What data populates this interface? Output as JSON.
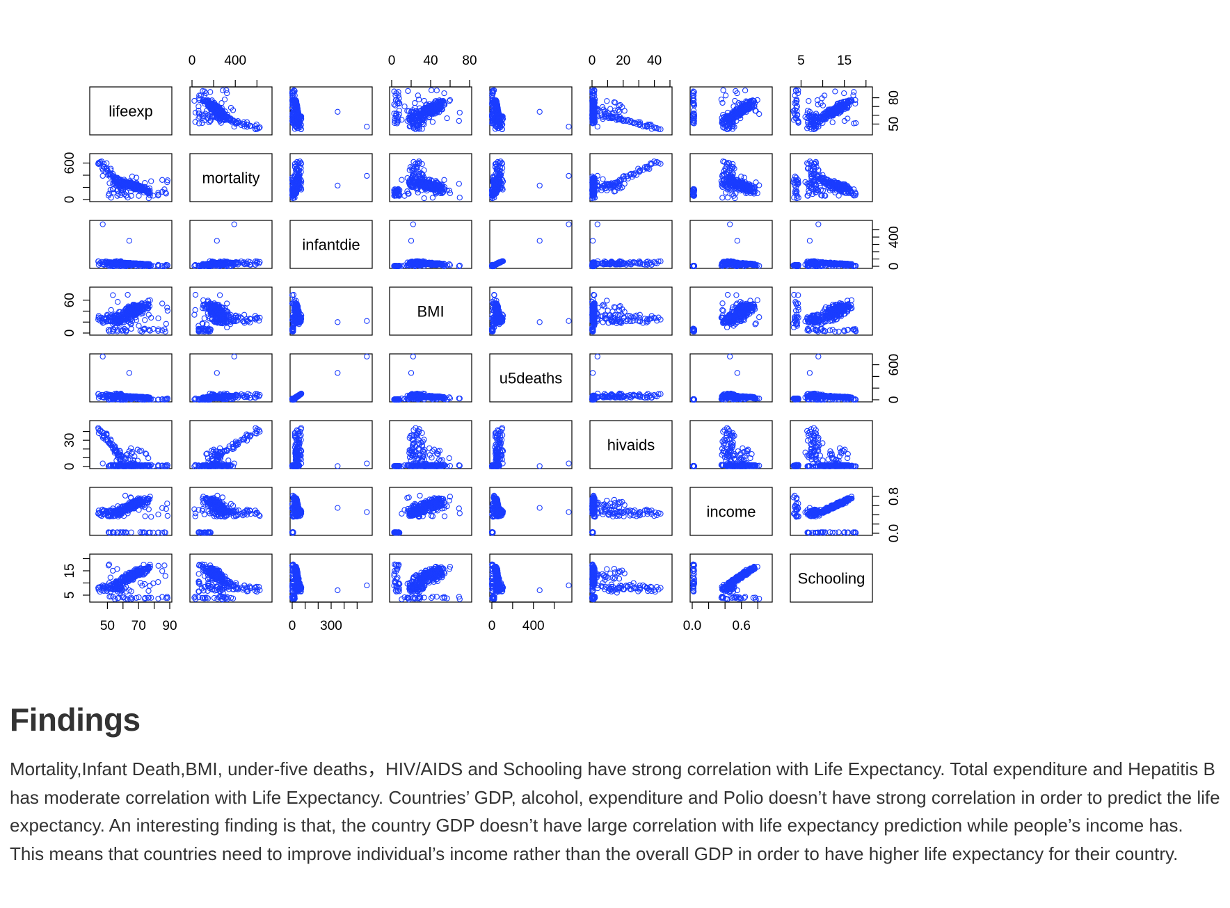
{
  "chart_data": {
    "type": "scatter-matrix",
    "title": "",
    "variables": [
      "lifeexp",
      "mortality",
      "infantdie",
      "BMI",
      "u5deaths",
      "hivaids",
      "income",
      "Schooling"
    ],
    "ranges": [
      [
        40,
        90
      ],
      [
        0,
        720
      ],
      [
        0,
        600
      ],
      [
        0,
        80
      ],
      [
        0,
        750
      ],
      [
        0,
        50
      ],
      [
        0,
        0.95
      ],
      [
        3,
        21
      ]
    ],
    "axes": {
      "top": [
        {
          "col": 1,
          "ticks": [
            0,
            200,
            400,
            600
          ],
          "labels": [
            {
              "v": 0,
              "t": "0"
            },
            {
              "v": 400,
              "t": "400"
            }
          ]
        },
        {
          "col": 3,
          "ticks": [
            0,
            20,
            40,
            60,
            80
          ],
          "labels": [
            {
              "v": 0,
              "t": "0"
            },
            {
              "v": 40,
              "t": "40"
            },
            {
              "v": 80,
              "t": "80"
            }
          ]
        },
        {
          "col": 5,
          "ticks": [
            0,
            10,
            20,
            30,
            40,
            50
          ],
          "labels": [
            {
              "v": 0,
              "t": "0"
            },
            {
              "v": 20,
              "t": "20"
            },
            {
              "v": 40,
              "t": "40"
            }
          ]
        },
        {
          "col": 7,
          "ticks": [
            5,
            10,
            15,
            20
          ],
          "labels": [
            {
              "v": 5,
              "t": "5"
            },
            {
              "v": 15,
              "t": "15"
            }
          ]
        }
      ],
      "bottom": [
        {
          "col": 0,
          "ticks": [
            50,
            60,
            70,
            80,
            90
          ],
          "labels": [
            {
              "v": 50,
              "t": "50"
            },
            {
              "v": 70,
              "t": "70"
            },
            {
              "v": 90,
              "t": "90"
            }
          ]
        },
        {
          "col": 2,
          "ticks": [
            0,
            100,
            200,
            300,
            400,
            500
          ],
          "labels": [
            {
              "v": 0,
              "t": "0"
            },
            {
              "v": 300,
              "t": "300"
            }
          ]
        },
        {
          "col": 4,
          "ticks": [
            0,
            200,
            400,
            600
          ],
          "labels": [
            {
              "v": 0,
              "t": "0"
            },
            {
              "v": 400,
              "t": "400"
            }
          ]
        },
        {
          "col": 6,
          "ticks": [
            0,
            0.2,
            0.4,
            0.6,
            0.8
          ],
          "labels": [
            {
              "v": 0,
              "t": "0.0"
            },
            {
              "v": 0.6,
              "t": "0.6"
            }
          ]
        }
      ],
      "left": [
        {
          "row": 1,
          "ticks": [
            0,
            200,
            400,
            600
          ],
          "labels": [
            {
              "v": 0,
              "t": "0"
            },
            {
              "v": 600,
              "t": "600"
            }
          ]
        },
        {
          "row": 3,
          "ticks": [
            0,
            20,
            40,
            60
          ],
          "labels": [
            {
              "v": 0,
              "t": "0"
            },
            {
              "v": 60,
              "t": "60"
            }
          ]
        },
        {
          "row": 5,
          "ticks": [
            0,
            10,
            20,
            30,
            40
          ],
          "labels": [
            {
              "v": 0,
              "t": "0"
            },
            {
              "v": 30,
              "t": "30"
            }
          ]
        },
        {
          "row": 7,
          "ticks": [
            5,
            10,
            15,
            20
          ],
          "labels": [
            {
              "v": 5,
              "t": "5"
            },
            {
              "v": 15,
              "t": "15"
            }
          ]
        }
      ],
      "right": [
        {
          "row": 0,
          "ticks": [
            50,
            60,
            70,
            80
          ],
          "labels": [
            {
              "v": 50,
              "t": "50"
            },
            {
              "v": 80,
              "t": "80"
            }
          ]
        },
        {
          "row": 2,
          "ticks": [
            0,
            100,
            200,
            300,
            400,
            500
          ],
          "labels": [
            {
              "v": 0,
              "t": "0"
            },
            {
              "v": 400,
              "t": "400"
            }
          ]
        },
        {
          "row": 4,
          "ticks": [
            0,
            200,
            400,
            600
          ],
          "labels": [
            {
              "v": 0,
              "t": "0"
            },
            {
              "v": 600,
              "t": "600"
            }
          ]
        },
        {
          "row": 6,
          "ticks": [
            0,
            0.2,
            0.4,
            0.6,
            0.8
          ],
          "labels": [
            {
              "v": 0,
              "t": "0.0"
            },
            {
              "v": 0.8,
              "t": "0.8"
            }
          ]
        }
      ]
    },
    "point_color": "#1a3cff",
    "frame_color": "#000000"
  },
  "findings": {
    "heading": "Findings",
    "text": "Mortality,Infant Death,BMI, under-five deaths，HIV/AIDS and Schooling have strong correlation with Life Expectancy. Total expenditure and Hepatitis B has moderate correlation with Life Expectancy. Countries’ GDP, alcohol, expenditure and Polio doesn’t have strong correlation in order to predict the life expectancy. An interesting finding is that, the country GDP doesn’t have large correlation with life expectancy prediction while people’s income has. This means that countries need to improve individual’s income rather than the overall GDP in order to have higher life expectancy for their country."
  }
}
